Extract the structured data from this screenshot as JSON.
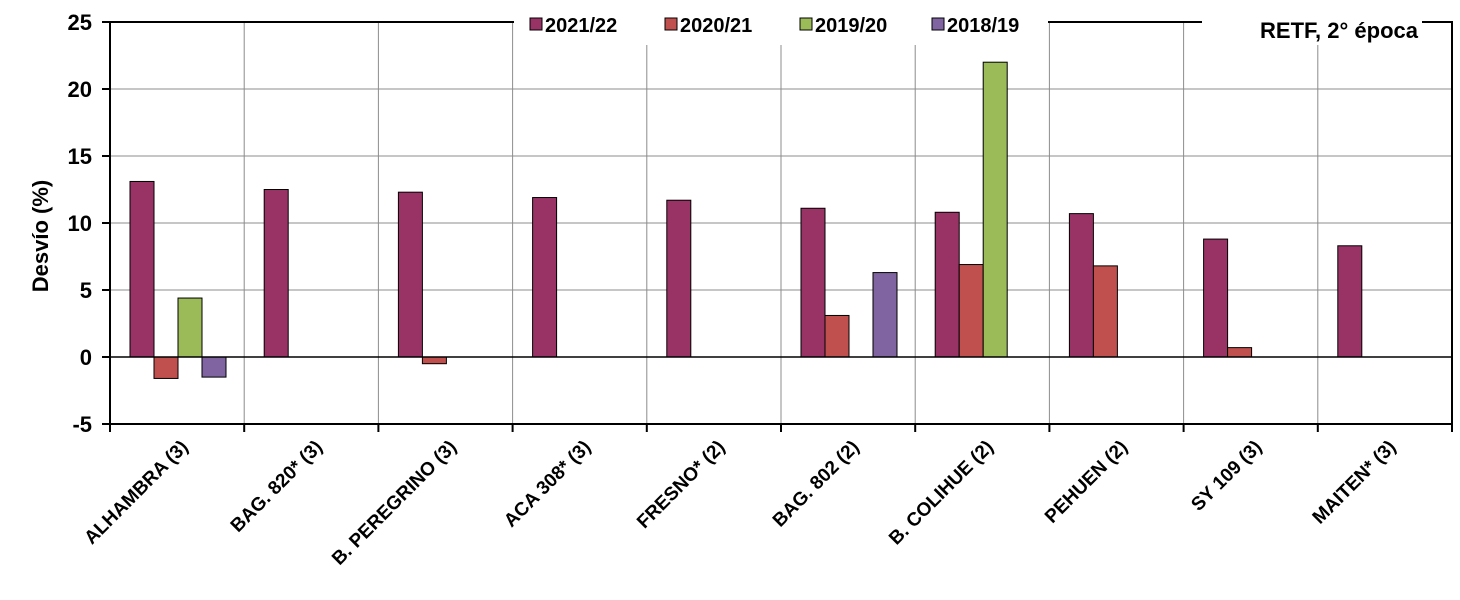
{
  "chart_data": {
    "type": "bar",
    "title": "",
    "annotation": "RETF, 2° época",
    "xlabel": "",
    "ylabel": "Desvío (%)",
    "ylim": [
      -5,
      25
    ],
    "yticks": [
      25,
      20,
      15,
      10,
      5,
      0,
      -5
    ],
    "grid": true,
    "legend_position": "top",
    "categories": [
      "ALHAMBRA (3)",
      "BAG. 820* (3)",
      "B. PEREGRINO (3)",
      "ACA 308* (3)",
      "FRESNO* (2)",
      "BAG. 802 (2)",
      "B. COLIHUE (2)",
      "PEHUEN (2)",
      "SY 109 (3)",
      "MAITEN* (3)"
    ],
    "series": [
      {
        "name": "2021/22",
        "color": "#993366",
        "values": [
          13.1,
          12.5,
          12.3,
          11.9,
          11.7,
          11.1,
          10.8,
          10.7,
          8.8,
          8.3
        ]
      },
      {
        "name": "2020/21",
        "color": "#c0504d",
        "values": [
          -1.6,
          null,
          -0.5,
          null,
          null,
          3.1,
          6.9,
          6.8,
          0.7,
          null
        ]
      },
      {
        "name": "2019/20",
        "color": "#9bbb59",
        "values": [
          4.4,
          null,
          null,
          null,
          null,
          null,
          22.0,
          null,
          null,
          null
        ]
      },
      {
        "name": "2018/19",
        "color": "#8064a2",
        "values": [
          -1.5,
          null,
          null,
          null,
          null,
          6.3,
          null,
          null,
          null,
          null
        ]
      }
    ]
  }
}
